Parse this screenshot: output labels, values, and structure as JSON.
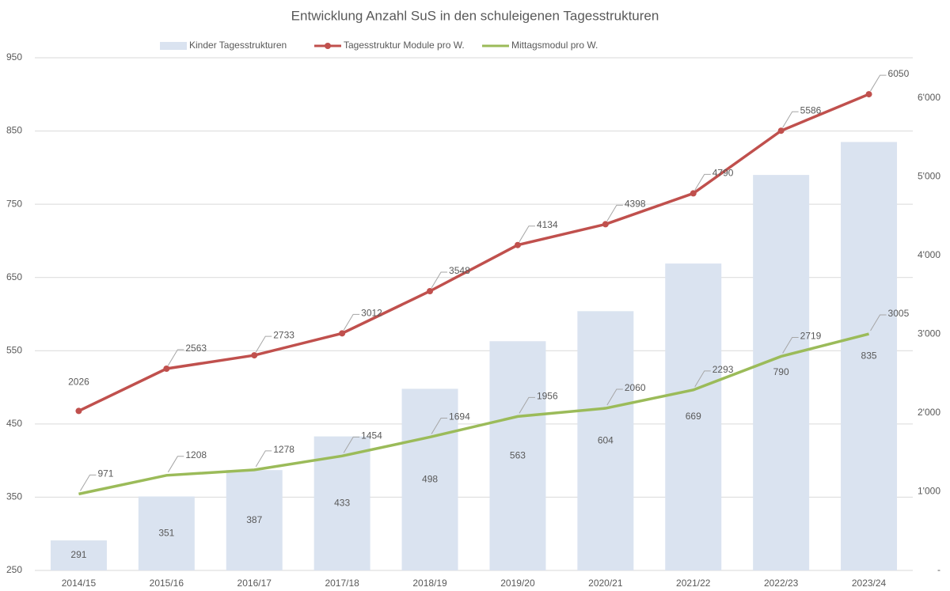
{
  "chart_data": {
    "type": "combo",
    "title": "Entwicklung Anzahl SuS in den schuleigenen Tagesstrukturen",
    "categories": [
      "2014/15",
      "2015/16",
      "2016/17",
      "2017/18",
      "2018/19",
      "2019/20",
      "2020/21",
      "2021/22",
      "2022/23",
      "2023/24"
    ],
    "series": [
      {
        "name": "Kinder Tagesstrukturen",
        "type": "bar",
        "axis": "y",
        "color": "#dae3f0",
        "values": [
          291,
          351,
          387,
          433,
          498,
          563,
          604,
          669,
          790,
          835
        ]
      },
      {
        "name": "Tagesstruktur Module pro W.",
        "type": "line",
        "axis": "y2",
        "color": "#c0504d",
        "values": [
          2026,
          2563,
          2733,
          3012,
          3548,
          4134,
          4398,
          4790,
          5586,
          6050
        ]
      },
      {
        "name": "Mittagsmodul pro W.",
        "type": "line",
        "axis": "y2",
        "color": "#9bbb59",
        "values": [
          971,
          1208,
          1278,
          1454,
          1694,
          1956,
          2060,
          2293,
          2719,
          3005
        ]
      }
    ],
    "ylim": [
      250,
      950
    ],
    "yticks": [
      250,
      350,
      450,
      550,
      650,
      750,
      850,
      950
    ],
    "y2lim": [
      0,
      6513
    ],
    "y2ticks": [
      {
        "value": 0,
        "label": "-"
      },
      {
        "value": 1000,
        "label": "1'000"
      },
      {
        "value": 2000,
        "label": "2'000"
      },
      {
        "value": 3000,
        "label": "3'000"
      },
      {
        "value": 4000,
        "label": "4'000"
      },
      {
        "value": 5000,
        "label": "5'000"
      },
      {
        "value": 6000,
        "label": "6'000"
      }
    ],
    "grid": true,
    "legend": "top"
  }
}
